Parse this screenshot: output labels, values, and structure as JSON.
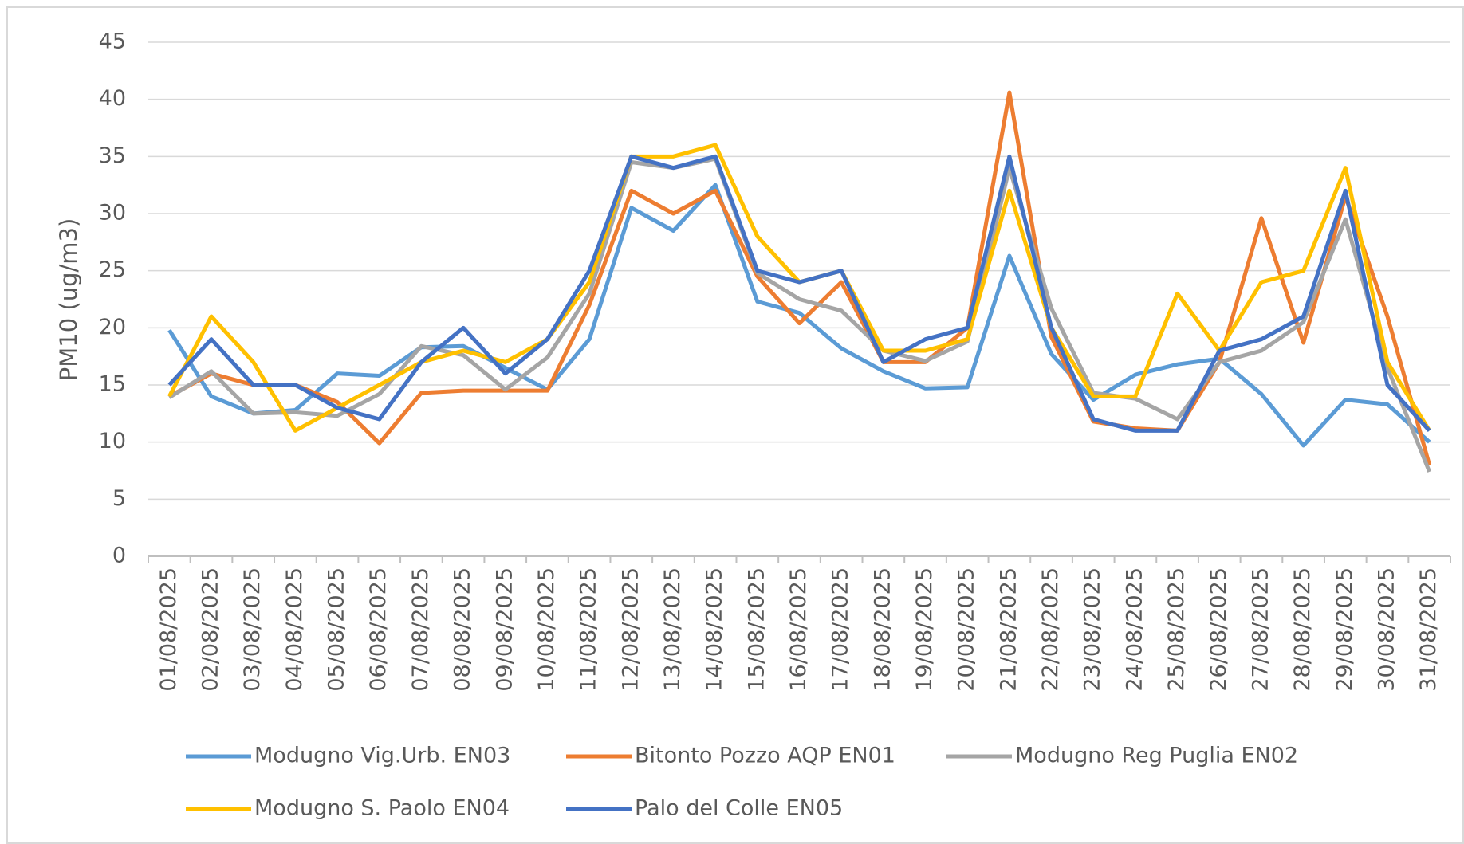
{
  "chart_data": {
    "type": "line",
    "y_label": "PM10 (ug/m3)",
    "categories": [
      "01/08/2025",
      "02/08/2025",
      "03/08/2025",
      "04/08/2025",
      "05/08/2025",
      "06/08/2025",
      "07/08/2025",
      "08/08/2025",
      "09/08/2025",
      "10/08/2025",
      "11/08/2025",
      "12/08/2025",
      "13/08/2025",
      "14/08/2025",
      "15/08/2025",
      "16/08/2025",
      "17/08/2025",
      "18/08/2025",
      "19/08/2025",
      "20/08/2025",
      "21/08/2025",
      "22/08/2025",
      "23/08/2025",
      "24/08/2025",
      "25/08/2025",
      "26/08/2025",
      "27/08/2025",
      "28/08/2025",
      "29/08/2025",
      "30/08/2025",
      "31/08/2025"
    ],
    "series": [
      {
        "name": "Modugno Vig.Urb. EN03",
        "color": "#5b9bd5",
        "values": [
          19.8,
          14,
          12.5,
          12.8,
          16,
          15.8,
          18.3,
          18.4,
          16.5,
          14.6,
          19,
          30.5,
          28.5,
          32.5,
          22.3,
          21.3,
          18.2,
          16.2,
          14.7,
          14.8,
          26.3,
          17.7,
          13.7,
          15.9,
          16.8,
          17.3,
          14.2,
          9.7,
          13.7,
          13.3,
          10
        ]
      },
      {
        "name": "Bitonto Pozzo AQP EN01",
        "color": "#ed7d31",
        "values": [
          14,
          16,
          15,
          15,
          13.5,
          9.9,
          14.3,
          14.5,
          14.5,
          14.5,
          22,
          32,
          30,
          32,
          24.5,
          20.4,
          24,
          17,
          17,
          20,
          40.6,
          19.2,
          11.8,
          11.2,
          11,
          17,
          29.6,
          18.7,
          31.5,
          21,
          8
        ]
      },
      {
        "name": "Modugno Reg Puglia EN02",
        "color": "#a5a5a5",
        "values": [
          13.9,
          16.2,
          12.5,
          12.6,
          12.3,
          14.2,
          18.4,
          17.6,
          14.6,
          17.4,
          23,
          34.5,
          34,
          34.8,
          24.8,
          22.5,
          21.5,
          18,
          17.1,
          18.8,
          34,
          21.7,
          14.3,
          13.8,
          12,
          17,
          18,
          20.5,
          29.5,
          16.5,
          7.4
        ]
      },
      {
        "name": "Modugno S. Paolo EN04",
        "color": "#ffc000",
        "values": [
          14,
          21,
          17,
          11,
          13,
          15,
          17,
          18,
          17,
          19,
          24,
          35,
          35,
          36,
          28,
          24,
          25,
          18,
          18,
          19,
          32,
          20,
          14,
          14,
          23,
          18,
          24,
          25,
          34,
          17,
          11
        ]
      },
      {
        "name": "Palo del Colle EN05",
        "color": "#4472c4",
        "values": [
          15,
          19,
          15,
          15,
          13,
          12,
          17,
          20,
          16,
          19,
          25,
          35,
          34,
          35,
          25,
          24,
          25,
          17,
          19,
          20,
          35,
          20,
          12,
          11,
          11,
          18,
          19,
          21,
          32,
          15,
          11
        ]
      }
    ],
    "ylim": [
      0,
      45
    ],
    "yticks": [
      0,
      5,
      10,
      15,
      20,
      25,
      30,
      35,
      40,
      45
    ],
    "grid": true,
    "legend": "bottom"
  }
}
